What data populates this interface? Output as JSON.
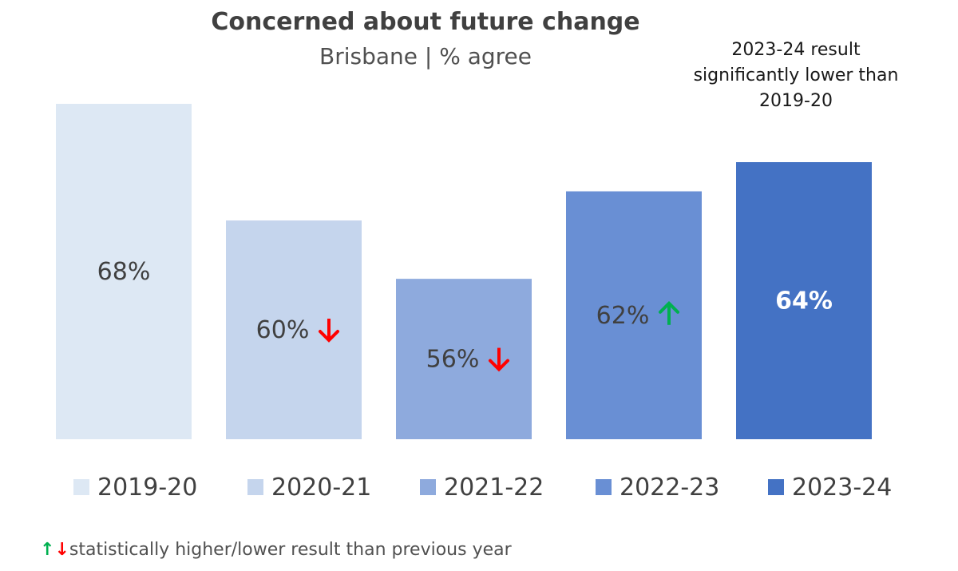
{
  "chart_data": {
    "type": "bar",
    "title": "Concerned about future change",
    "subtitle": "Brisbane | % agree",
    "categories": [
      "2019-20",
      "2020-21",
      "2021-22",
      "2022-23",
      "2023-24"
    ],
    "values": [
      68,
      60,
      56,
      62,
      64
    ],
    "value_labels": [
      "68%",
      "60%",
      "56%",
      "62%",
      "64%"
    ],
    "significance": [
      "none",
      "down",
      "down",
      "up",
      "none"
    ],
    "colors": [
      "#dde8f4",
      "#c5d5ed",
      "#8eaadd",
      "#698fd4",
      "#4472c4"
    ],
    "label_colors": [
      "#404040",
      "#404040",
      "#404040",
      "#404040",
      "#ffffff"
    ],
    "ylim": [
      0,
      100
    ],
    "grid": false,
    "legend_position": "bottom",
    "annotation": "2023-24 result significantly lower than 2019-20"
  },
  "icons": {
    "up": "arrow-up-icon",
    "down": "arrow-down-icon",
    "up_color": "#00b050",
    "down_color": "#ff0000"
  },
  "footnote": {
    "up_glyph": "↑",
    "down_glyph": "↓",
    "text": "statistically higher/lower result than previous year"
  }
}
